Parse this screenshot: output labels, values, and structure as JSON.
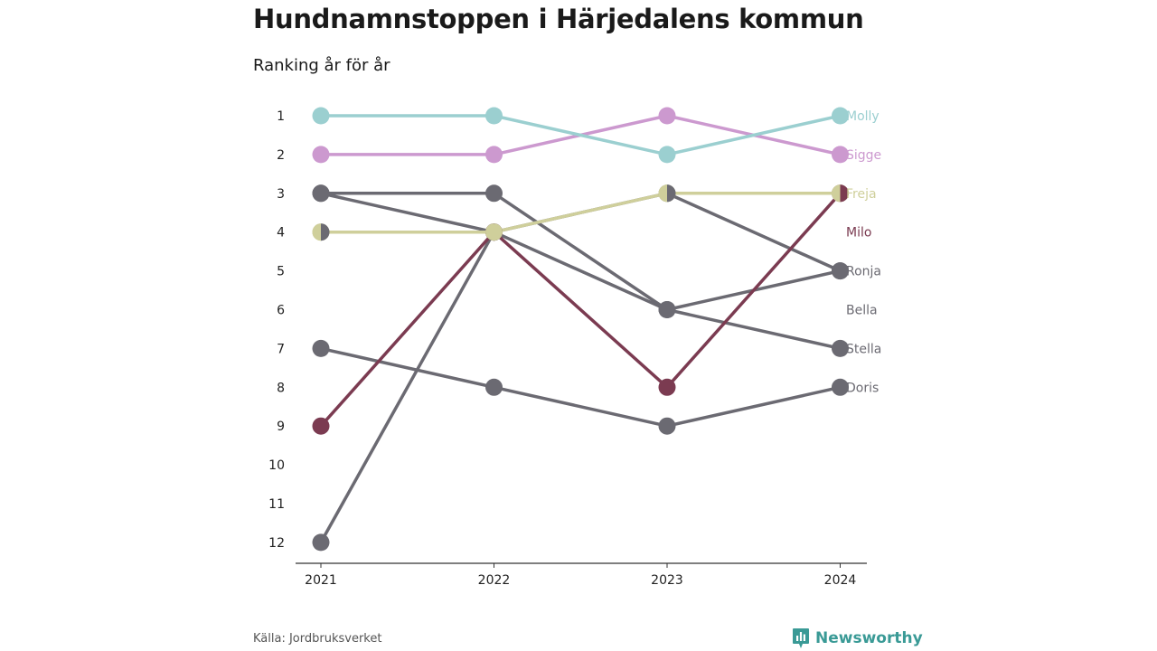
{
  "title": "Hundnamnstoppen i Härjedalens kommun",
  "subtitle": "Ranking år för år",
  "source": "Källa: Jordbruksverket",
  "brand": "Newsworthy",
  "chart_data": {
    "type": "line",
    "subtype": "bump",
    "x": [
      "2021",
      "2022",
      "2023",
      "2024"
    ],
    "y_ticks": [
      1,
      2,
      3,
      4,
      5,
      6,
      7,
      8,
      9,
      10,
      11,
      12
    ],
    "ylim": [
      1,
      12
    ],
    "y_reversed": true,
    "series": [
      {
        "name": "Molly",
        "color": "#9bcfd0",
        "values": [
          1,
          1,
          2,
          1
        ]
      },
      {
        "name": "Sigge",
        "color": "#cc99cf",
        "values": [
          2,
          2,
          1,
          2
        ]
      },
      {
        "name": "Freja",
        "color": "#cfcf9b",
        "values": [
          4,
          4,
          3,
          3
        ]
      },
      {
        "name": "Milo",
        "color": "#7b3b51",
        "values": [
          9,
          4,
          8,
          3
        ]
      },
      {
        "name": "Ronja",
        "color": "#6b6a72",
        "values": [
          3,
          3,
          6,
          5
        ]
      },
      {
        "name": "Bella",
        "color": "#6b6a72",
        "values": [
          12,
          4,
          3,
          5
        ]
      },
      {
        "name": "Stella",
        "color": "#6b6a72",
        "values": [
          3,
          4,
          6,
          7
        ]
      },
      {
        "name": "Doris",
        "color": "#6b6a72",
        "values": [
          7,
          8,
          9,
          8
        ]
      }
    ],
    "label_positions": {
      "Molly": 1,
      "Sigge": 2,
      "Freja": 3,
      "Milo": 4,
      "Ronja": 5,
      "Bella": 6,
      "Stella": 7,
      "Doris": 8
    },
    "split_markers": [
      {
        "year": "2021",
        "rank": 4,
        "left": "#cfcf9b",
        "right": "#6b6a72"
      },
      {
        "year": "2023",
        "rank": 3,
        "left": "#cfcf9b",
        "right": "#6b6a72"
      },
      {
        "year": "2024",
        "rank": 3,
        "left": "#cfcf9b",
        "right": "#7b3b51"
      }
    ]
  }
}
